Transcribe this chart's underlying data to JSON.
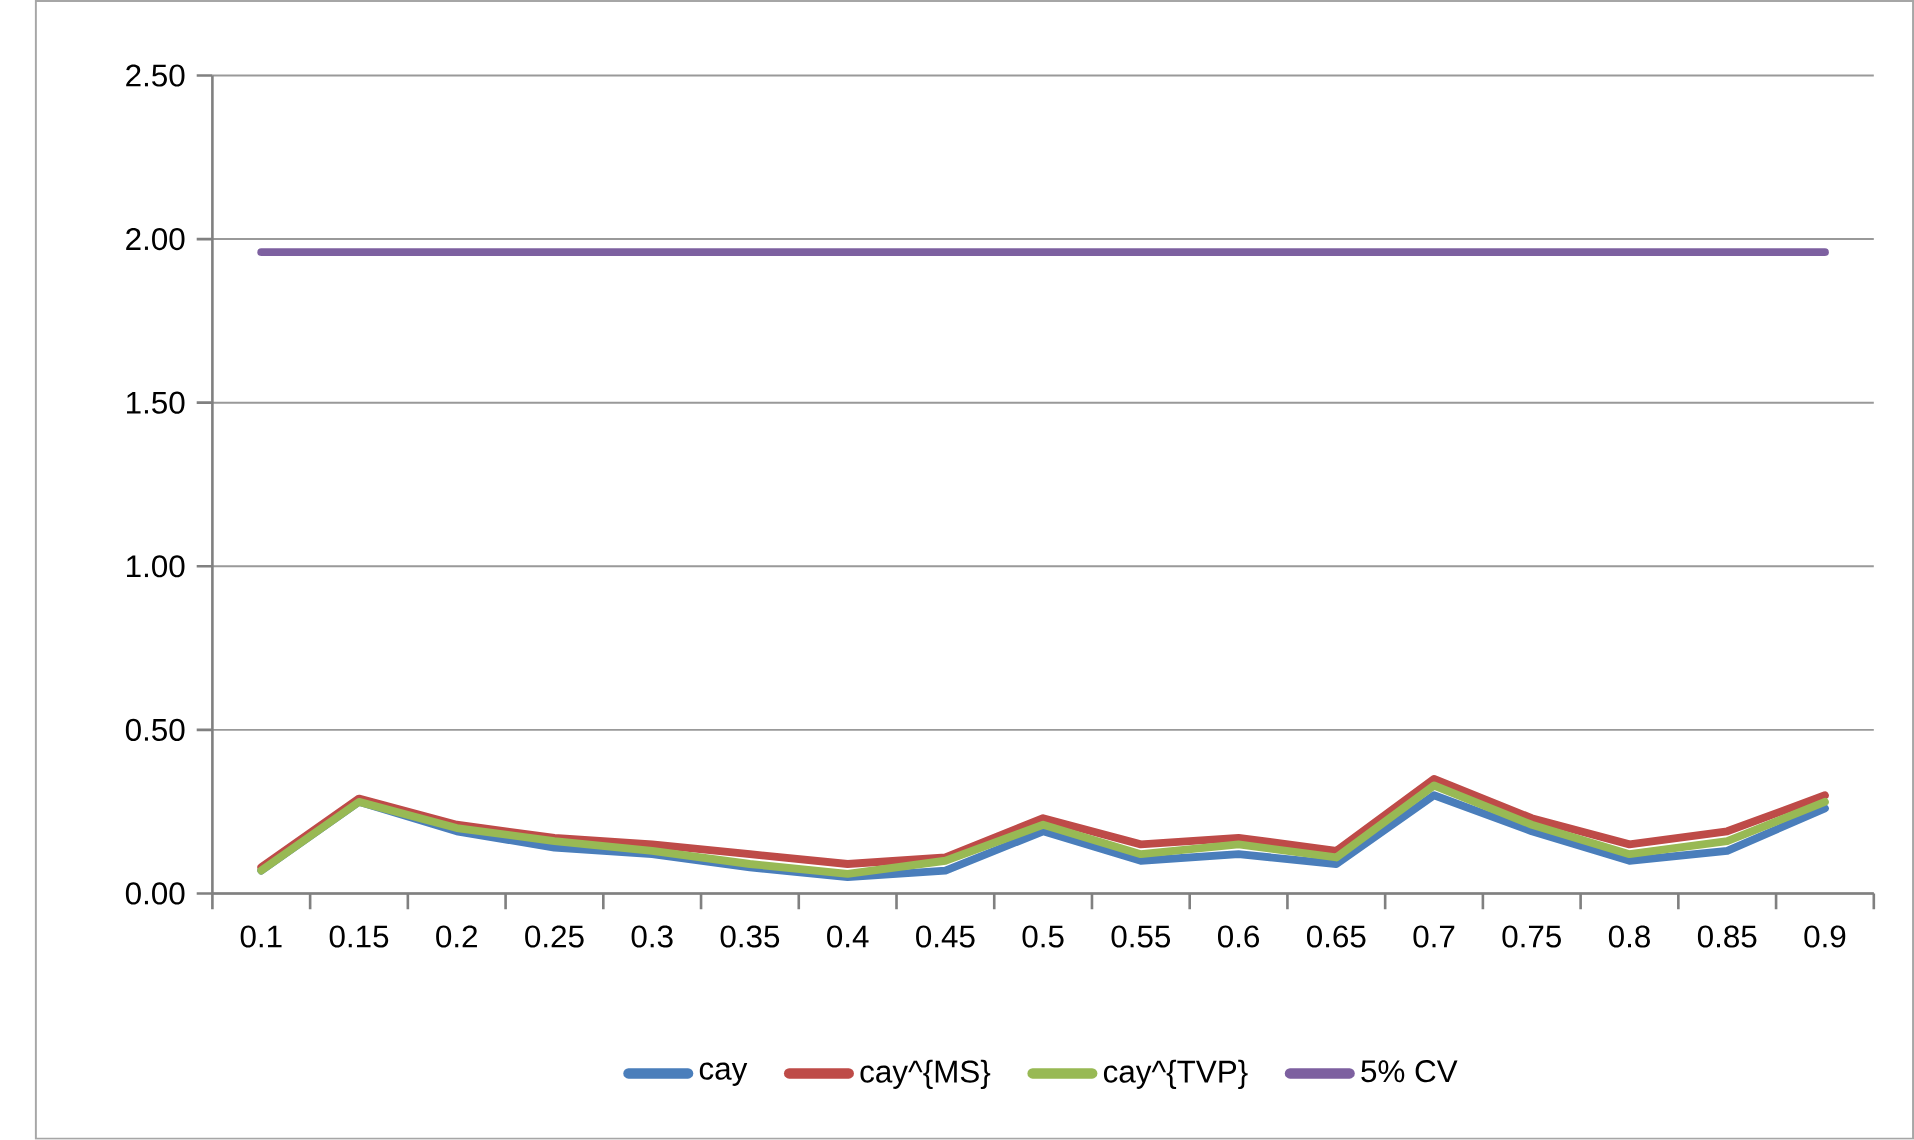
{
  "chart_data": {
    "type": "line",
    "categories": [
      "0.1",
      "0.15",
      "0.2",
      "0.25",
      "0.3",
      "0.35",
      "0.4",
      "0.45",
      "0.5",
      "0.55",
      "0.6",
      "0.65",
      "0.7",
      "0.75",
      "0.8",
      "0.85",
      "0.9"
    ],
    "series": [
      {
        "name": "cay",
        "color": "#4a7ebb",
        "values": [
          0.07,
          0.28,
          0.19,
          0.14,
          0.12,
          0.08,
          0.05,
          0.07,
          0.19,
          0.1,
          0.12,
          0.09,
          0.3,
          0.19,
          0.1,
          0.13,
          0.26
        ]
      },
      {
        "name": "cay^{MS}",
        "color": "#be4b48",
        "values": [
          0.08,
          0.29,
          0.21,
          0.17,
          0.15,
          0.12,
          0.09,
          0.11,
          0.23,
          0.15,
          0.17,
          0.13,
          0.35,
          0.23,
          0.15,
          0.19,
          0.3
        ]
      },
      {
        "name": "cay^{TVP}",
        "color": "#98b954",
        "values": [
          0.07,
          0.28,
          0.2,
          0.16,
          0.13,
          0.09,
          0.06,
          0.1,
          0.21,
          0.12,
          0.15,
          0.11,
          0.33,
          0.21,
          0.12,
          0.16,
          0.28
        ]
      },
      {
        "name": "5% CV",
        "color": "#7d60a0",
        "values": [
          1.96,
          1.96,
          1.96,
          1.96,
          1.96,
          1.96,
          1.96,
          1.96,
          1.96,
          1.96,
          1.96,
          1.96,
          1.96,
          1.96,
          1.96,
          1.96,
          1.96
        ]
      }
    ],
    "ylim": [
      0,
      2.5
    ],
    "yticks": [
      {
        "value": 0,
        "label": "0.00"
      },
      {
        "value": 0.5,
        "label": "0.50"
      },
      {
        "value": 1,
        "label": "1.00"
      },
      {
        "value": 1.5,
        "label": "1.50"
      },
      {
        "value": 2,
        "label": "2.00"
      },
      {
        "value": 2.5,
        "label": "2.50"
      }
    ],
    "grid": "y",
    "legend": "bottom",
    "marker": "none",
    "line_style": "solid"
  }
}
